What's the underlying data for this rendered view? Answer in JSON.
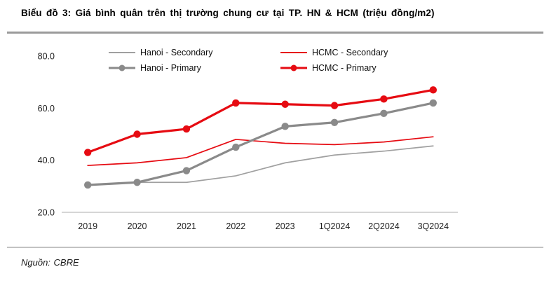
{
  "header": {
    "title": "Biểu đồ 3: Giá bình quân trên thị trường chung cư tại TP. HN & HCM (triệu đồng/m2)"
  },
  "source": {
    "label": "Nguồn: CBRE"
  },
  "chart_data": {
    "type": "line",
    "title": "Biểu đồ 3: Giá bình quân trên thị trường chung cư tại TP. HN & HCM (triệu đồng/m2)",
    "categories": [
      "2019",
      "2020",
      "2021",
      "2022",
      "2023",
      "1Q2024",
      "2Q2024",
      "3Q2024"
    ],
    "series": [
      {
        "name": "Hanoi - Secondary",
        "color": "#a0a0a0",
        "style": "thin",
        "marker": false,
        "values": [
          30.5,
          31.5,
          31.5,
          34,
          39,
          42,
          43.5,
          45.5
        ]
      },
      {
        "name": "Hanoi - Primary",
        "color": "#8a8a8a",
        "style": "thick",
        "marker": true,
        "values": [
          30.5,
          31.5,
          36,
          45,
          53,
          54.5,
          58,
          62
        ]
      },
      {
        "name": "HCMC - Secondary",
        "color": "#e60b12",
        "style": "thin",
        "marker": false,
        "values": [
          38,
          39,
          41,
          48,
          46.5,
          46,
          47,
          49
        ]
      },
      {
        "name": "HCMC - Primary",
        "color": "#e60b12",
        "style": "thick",
        "marker": true,
        "values": [
          43,
          50,
          52,
          62,
          61.5,
          61,
          63.5,
          67
        ]
      }
    ],
    "ylim": [
      20,
      80
    ],
    "yticks": [
      20,
      40,
      60,
      80
    ],
    "ytick_format": "one_decimal",
    "xlabel": "",
    "ylabel": "",
    "grid": false,
    "legend_position": "top"
  }
}
